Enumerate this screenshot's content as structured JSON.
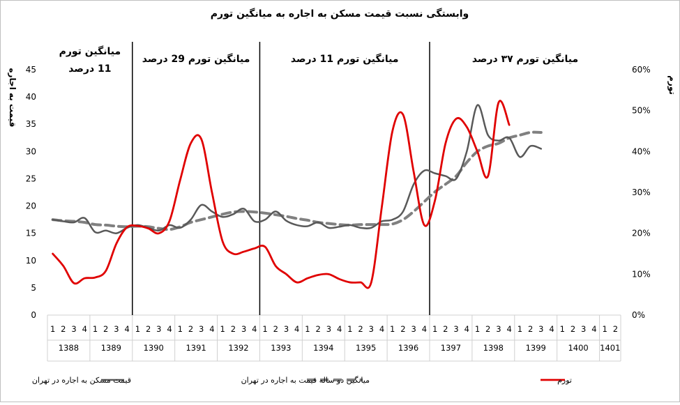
{
  "chart_data": {
    "type": "line",
    "title": "وابستگی نسبت قیمت مسکن به اجاره به میانگین تورم",
    "y_left_label": "قیمت به اجاره",
    "y_right_label": "تورم",
    "y_left_range": [
      0,
      45
    ],
    "y_left_ticks": [
      "0",
      "5",
      "10",
      "15",
      "20",
      "25",
      "30",
      "35",
      "40",
      "45"
    ],
    "y_right_range": [
      0,
      60
    ],
    "y_right_ticks": [
      "0%",
      "10%",
      "20%",
      "30%",
      "40%",
      "50%",
      "60%"
    ],
    "years": [
      "1388",
      "1389",
      "1390",
      "1391",
      "1392",
      "1393",
      "1394",
      "1395",
      "1396",
      "1397",
      "1398",
      "1399",
      "1400",
      "1401"
    ],
    "quarters": [
      "1",
      "2",
      "3",
      "4"
    ],
    "x_quarter_labels": [
      "1",
      "2",
      "3",
      "4",
      "1",
      "2",
      "3",
      "4",
      "1",
      "2",
      "3",
      "4",
      "1",
      "2",
      "3",
      "4",
      "1",
      "2",
      "3",
      "4",
      "1",
      "2",
      "3",
      "4",
      "1",
      "2",
      "3",
      "4",
      "1",
      "2",
      "3",
      "4",
      "1",
      "2",
      "3",
      "4",
      "1",
      "2",
      "3",
      "4",
      "1",
      "2",
      "3",
      "4",
      "1",
      "2",
      "3",
      "4",
      "1",
      "2",
      "3",
      "4",
      "1",
      "2"
    ],
    "periods": [
      {
        "label": "میانگین تورم",
        "label2": "11 درصد",
        "boundary_after_index": 7
      },
      {
        "label": "میانگین تورم 29 درصد",
        "boundary_after_index": 19
      },
      {
        "label": "میانگین تورم 11 درصد",
        "boundary_after_index": 35
      },
      {
        "label": "میانگین تورم ۳۷ درصد"
      }
    ],
    "series": [
      {
        "name": "قیمت مسکن به اجاره در تهران",
        "axis": "left",
        "color": "#595959",
        "style": "solid",
        "values": [
          17.5,
          17.2,
          17.0,
          17.8,
          15.2,
          15.5,
          15.0,
          16.0,
          16.5,
          16.0,
          15.5,
          16.5,
          16.0,
          17.5,
          20.2,
          19.0,
          18.0,
          18.5,
          19.5,
          17.2,
          17.5,
          19.0,
          17.3,
          16.5,
          16.3,
          17.0,
          16.0,
          16.2,
          16.5,
          16.0,
          16.0,
          17.2,
          17.5,
          19.0,
          24.0,
          26.5,
          26.0,
          25.5,
          25.0,
          30.0,
          38.5,
          33.0,
          32.0,
          32.5,
          29.0,
          31.0,
          30.5
        ]
      },
      {
        "name": "میانگین دو ساله قیمت به اجاره در تهران",
        "axis": "left",
        "color": "#808080",
        "style": "dashed",
        "values": [
          17.5,
          17.3,
          17.2,
          17.0,
          16.6,
          16.5,
          16.3,
          16.2,
          16.3,
          16.2,
          15.9,
          15.7,
          16.2,
          17.0,
          17.5,
          18.0,
          18.5,
          18.9,
          19.0,
          18.9,
          18.7,
          18.4,
          18.1,
          17.7,
          17.4,
          17.0,
          16.8,
          16.6,
          16.5,
          16.6,
          16.6,
          16.6,
          16.7,
          17.5,
          19.0,
          20.8,
          22.6,
          24.0,
          25.5,
          28.0,
          30.0,
          31.0,
          31.5,
          32.5,
          33.0,
          33.5,
          33.5
        ]
      },
      {
        "name": "تورم",
        "axis": "right",
        "color": "#e00000",
        "style": "solid",
        "values": [
          15.0,
          12.0,
          7.8,
          9.0,
          9.2,
          10.8,
          17.5,
          21.5,
          21.8,
          21.2,
          20.0,
          23.0,
          33.0,
          42.0,
          43.0,
          30.0,
          18.0,
          15.0,
          15.5,
          16.3,
          16.7,
          12.0,
          10.0,
          8.0,
          9.0,
          9.8,
          10.0,
          8.8,
          8.0,
          8.0,
          8.0,
          26.5,
          45.0,
          49.0,
          35.0,
          22.0,
          28.0,
          42.0,
          48.0,
          46.0,
          40.0,
          34.0,
          52.0,
          46.5
        ]
      }
    ],
    "legend_position": "bottom",
    "grid": false
  }
}
